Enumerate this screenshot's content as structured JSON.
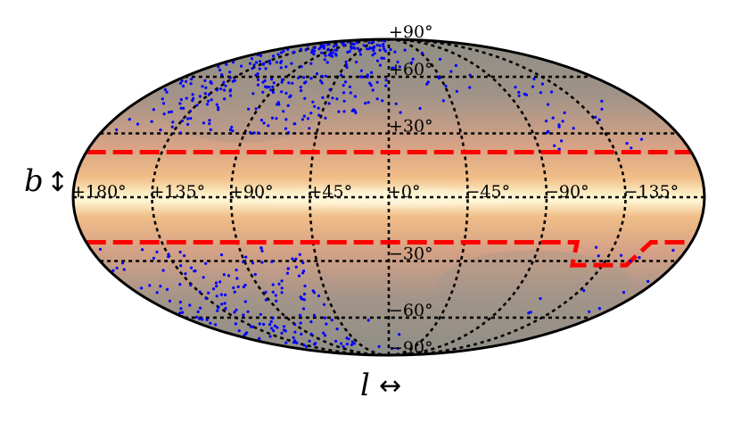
{
  "axes": {
    "b_label": "b",
    "b_arrow": "↕",
    "l_label": "l",
    "l_arrow": "↔"
  },
  "longitude_ticks": [
    {
      "value": 180,
      "text": "+180°"
    },
    {
      "value": 135,
      "text": "+135°"
    },
    {
      "value": 90,
      "text": "+90°"
    },
    {
      "value": 45,
      "text": "+45°"
    },
    {
      "value": 0,
      "text": "+0°"
    },
    {
      "value": -45,
      "text": "−45°"
    },
    {
      "value": -90,
      "text": "−90°"
    },
    {
      "value": -135,
      "text": "−135°"
    }
  ],
  "latitude_ticks": [
    {
      "value": 90,
      "text": "+90°"
    },
    {
      "value": 60,
      "text": "+60°"
    },
    {
      "value": 30,
      "text": "+30°"
    },
    {
      "value": -30,
      "text": "−30°"
    },
    {
      "value": -60,
      "text": "−60°"
    },
    {
      "value": -90,
      "text": "−90°"
    }
  ],
  "projection": "Mollweide (galactic coordinates)",
  "colors": {
    "points": "#0000ff",
    "cut_lines": "#ff0000",
    "graticule": "#000000",
    "outline": "#000000"
  },
  "cut_lines": {
    "north_b": 21,
    "south_b": -21,
    "south_notch": {
      "l_from": -112,
      "l_to": -150,
      "b": -32
    }
  },
  "point_clusters": [
    {
      "l_min": 40,
      "l_max": 175,
      "b_min": 30,
      "b_max": 86,
      "count": 240
    },
    {
      "l_min": 2,
      "l_max": 40,
      "b_min": 40,
      "b_max": 88,
      "count": 55
    },
    {
      "l_min": -80,
      "l_max": -2,
      "b_min": 40,
      "b_max": 80,
      "count": 25
    },
    {
      "l_min": -160,
      "l_max": -95,
      "b_min": 22,
      "b_max": 60,
      "count": 30
    },
    {
      "l_min": 50,
      "l_max": 178,
      "b_min": -80,
      "b_max": -22,
      "count": 170
    },
    {
      "l_min": -175,
      "l_max": -90,
      "b_min": -60,
      "b_max": -22,
      "count": 14
    },
    {
      "l_min": -30,
      "l_max": 20,
      "b_min": -88,
      "b_max": -60,
      "count": 5
    }
  ]
}
